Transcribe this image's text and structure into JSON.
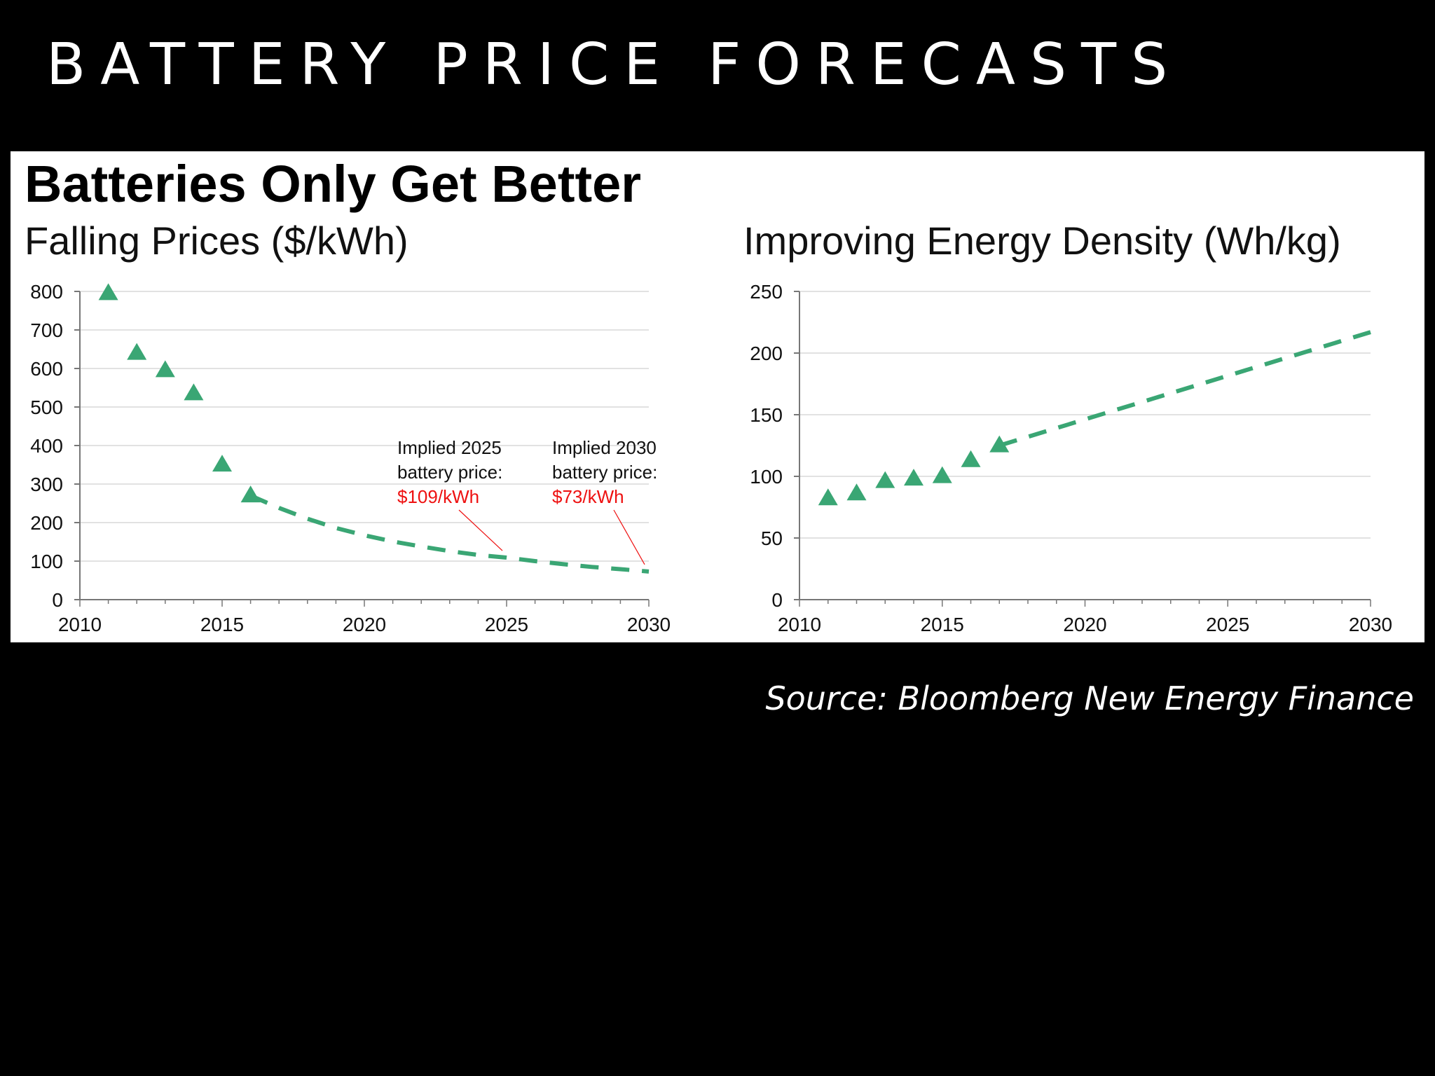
{
  "slide": {
    "title": "BATTERY PRICE FORECASTS",
    "source": "Source: Bloomberg New Energy Finance"
  },
  "panel": {
    "title": "Batteries Only Get Better"
  },
  "colors": {
    "series": "#3aa674",
    "annotation": "#ee1111",
    "gridline": "#d8d8d8",
    "axis": "#777777"
  },
  "chart_data": [
    {
      "type": "scatter",
      "title": "Falling Prices ($/kWh)",
      "xlabel": "",
      "ylabel": "",
      "xlim": [
        2010,
        2030
      ],
      "ylim": [
        0,
        800
      ],
      "xticks": [
        2010,
        2015,
        2020,
        2025,
        2030
      ],
      "yticks": [
        0,
        100,
        200,
        300,
        400,
        500,
        600,
        700,
        800
      ],
      "grid": true,
      "series": [
        {
          "kind": "markers",
          "x": [
            2011,
            2012,
            2013,
            2014,
            2015,
            2016
          ],
          "y": [
            795,
            640,
            595,
            535,
            350,
            270
          ]
        },
        {
          "kind": "dashed-line",
          "x": [
            2016,
            2017,
            2018,
            2019,
            2020,
            2021,
            2022,
            2023,
            2024,
            2025,
            2026,
            2027,
            2028,
            2029,
            2030
          ],
          "y": [
            270,
            238,
            210,
            186,
            167,
            151,
            138,
            126,
            116,
            109,
            100,
            92,
            85,
            79,
            73
          ]
        }
      ],
      "annotations": [
        {
          "x": 2025,
          "y": 109,
          "line1": "Implied 2025",
          "line2": "battery price:",
          "value": "$109/kWh"
        },
        {
          "x": 2030,
          "y": 73,
          "line1": "Implied 2030",
          "line2": "battery price:",
          "value": "$73/kWh"
        }
      ]
    },
    {
      "type": "scatter",
      "title": "Improving Energy Density (Wh/kg)",
      "xlabel": "",
      "ylabel": "",
      "xlim": [
        2010,
        2030
      ],
      "ylim": [
        0,
        250
      ],
      "xticks": [
        2010,
        2015,
        2020,
        2025,
        2030
      ],
      "yticks": [
        0,
        50,
        100,
        150,
        200,
        250
      ],
      "grid": true,
      "series": [
        {
          "kind": "markers",
          "x": [
            2011,
            2012,
            2013,
            2014,
            2015,
            2016,
            2017
          ],
          "y": [
            82,
            86,
            96,
            98,
            100,
            113,
            125
          ]
        },
        {
          "kind": "dashed-line",
          "x": [
            2017,
            2030
          ],
          "y": [
            125,
            217
          ]
        }
      ]
    }
  ]
}
